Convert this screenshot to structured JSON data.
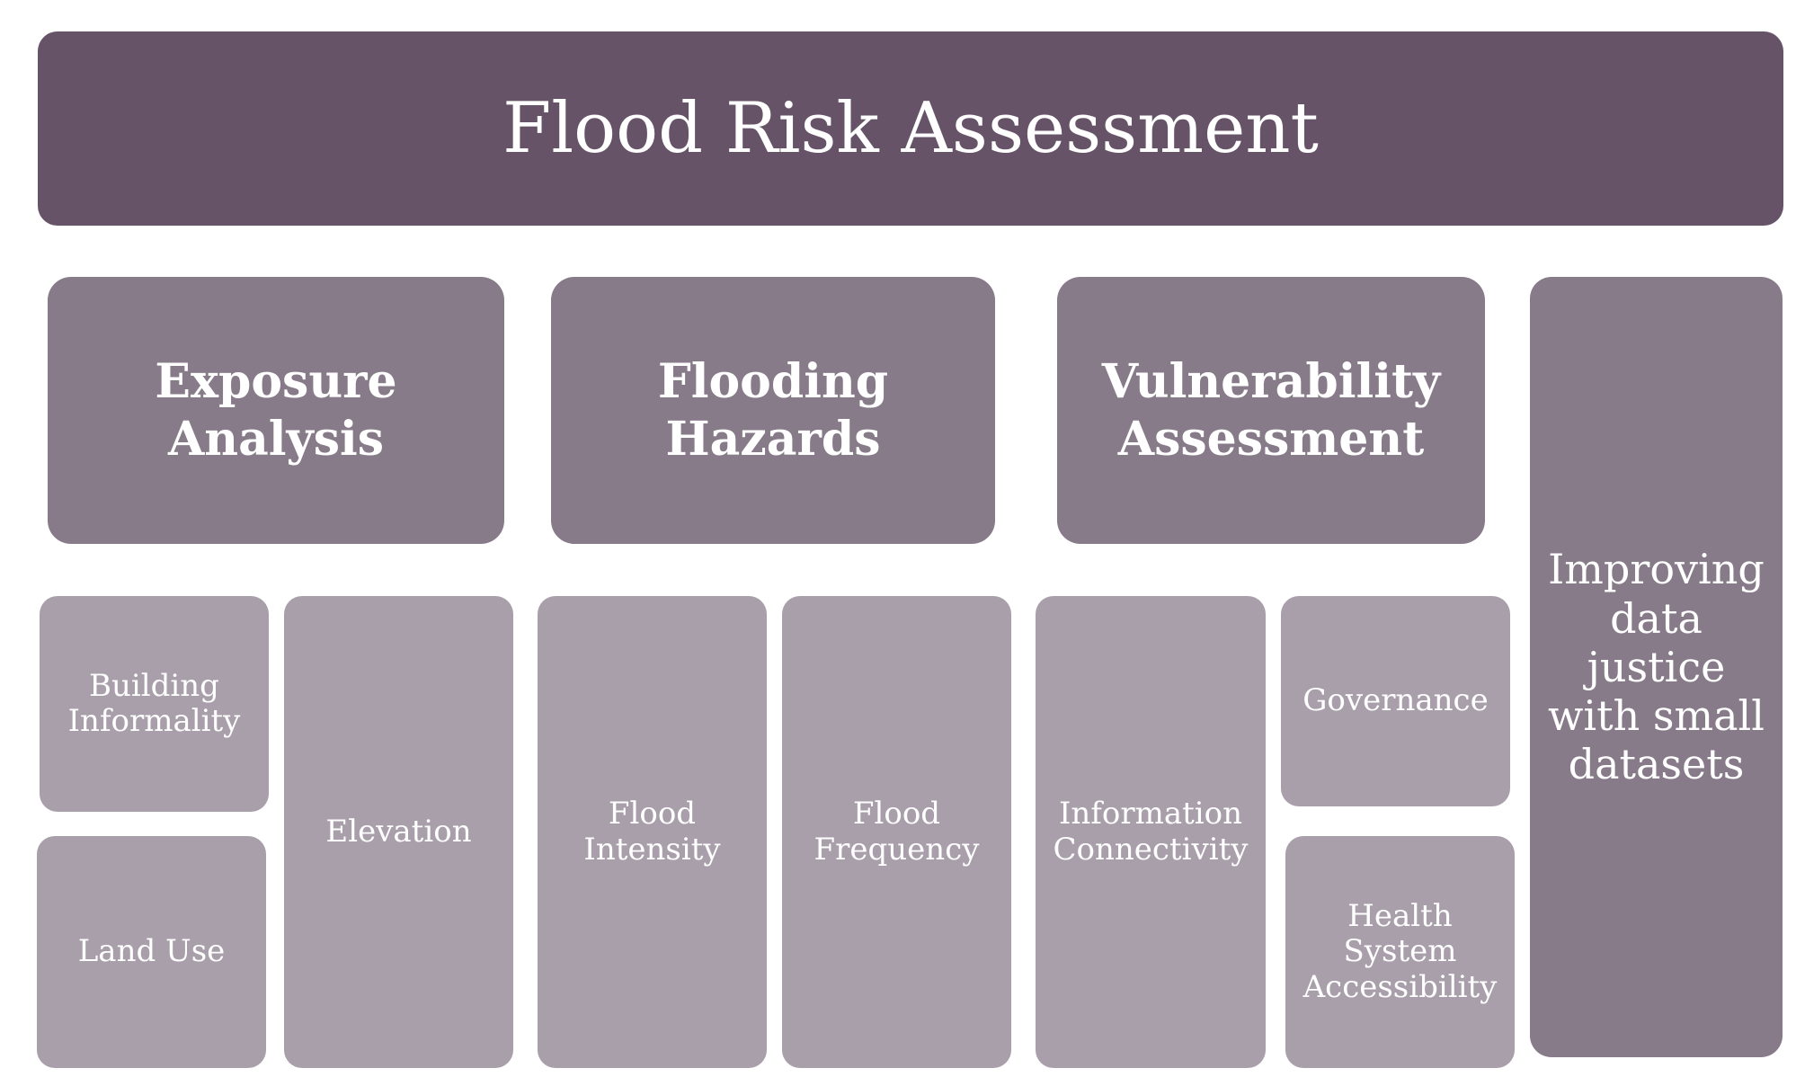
{
  "title": "Flood Risk Assessment",
  "categories": {
    "exposure": "Exposure\nAnalysis",
    "hazards": "Flooding\nHazards",
    "vulnerability": "Vulnerability\nAssessment"
  },
  "factors": {
    "building_informality": "Building\nInformality",
    "land_use": "Land Use",
    "elevation": "Elevation",
    "flood_intensity": "Flood\nIntensity",
    "flood_frequency": "Flood\nFrequency",
    "information_connectivity": "Information\nConnectivity",
    "governance": "Governance",
    "health_system_accessibility": "Health\nSystem\nAccessibility"
  },
  "side_note": "Improving\ndata\njustice\nwith small\ndatasets",
  "colors": {
    "title_bg": "#665368",
    "category_bg": "#877a89",
    "factor_bg": "#a99fab",
    "text": "#ffffff"
  }
}
